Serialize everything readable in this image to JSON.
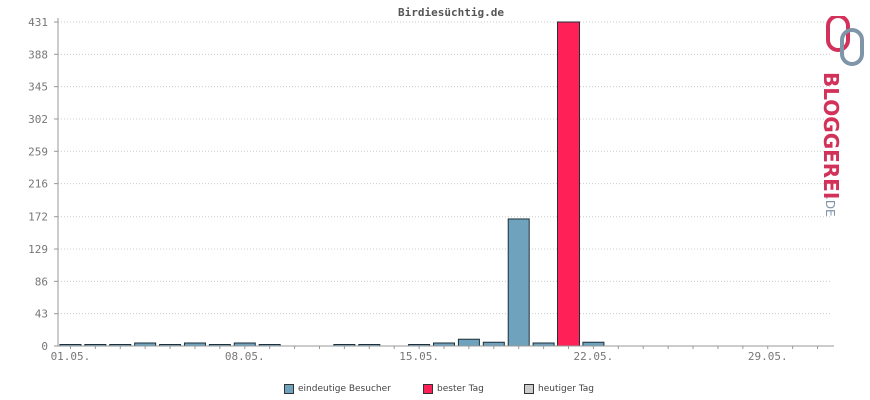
{
  "chart_data": {
    "type": "bar",
    "title": "Birdiesüchtig.de",
    "xlabel": "",
    "ylabel": "",
    "ylim": [
      0,
      431
    ],
    "yticks": [
      "0",
      "43",
      "86",
      "129",
      "172",
      "216",
      "259",
      "302",
      "345",
      "388",
      "431"
    ],
    "ytick_values": [
      0,
      43,
      86,
      129,
      172,
      216,
      259,
      302,
      345,
      388,
      431
    ],
    "xticks": [
      {
        "label": "01.05.",
        "day": 1
      },
      {
        "label": "08.05.",
        "day": 8
      },
      {
        "label": "15.05.",
        "day": 15
      },
      {
        "label": "22.05.",
        "day": 22
      },
      {
        "label": "29.05.",
        "day": 29
      }
    ],
    "grid": true,
    "days": [
      1,
      2,
      3,
      4,
      5,
      6,
      7,
      8,
      9,
      10,
      11,
      12,
      13,
      14,
      15,
      16,
      17,
      18,
      19,
      20,
      21,
      22,
      23,
      24,
      25,
      26,
      27,
      28,
      29,
      30,
      31
    ],
    "series": [
      {
        "name": "eindeutige Besucher",
        "color": "#6fa3bd",
        "values": [
          2,
          2,
          2,
          4,
          2,
          4,
          2,
          4,
          2,
          0,
          0,
          2,
          2,
          0,
          2,
          4,
          9,
          5,
          169,
          4,
          431,
          5,
          0,
          0,
          0,
          0,
          0,
          0,
          0,
          0,
          0
        ]
      }
    ],
    "best_day": 21,
    "best_day_color": "#ff2057",
    "today_color": "#cccccc"
  },
  "legend": {
    "placement": "bottom-center",
    "items": [
      {
        "label": "eindeutige Besucher",
        "color": "#6fa3bd"
      },
      {
        "label": "bester Tag",
        "color": "#ff2057"
      },
      {
        "label": "heutiger Tag",
        "color": "#cccccc"
      }
    ]
  },
  "logo": {
    "text_main": "BLOGGEREI",
    "text_suffix": ".DE",
    "color_main": "#d2325a",
    "color_secondary": "#7f95a8"
  }
}
